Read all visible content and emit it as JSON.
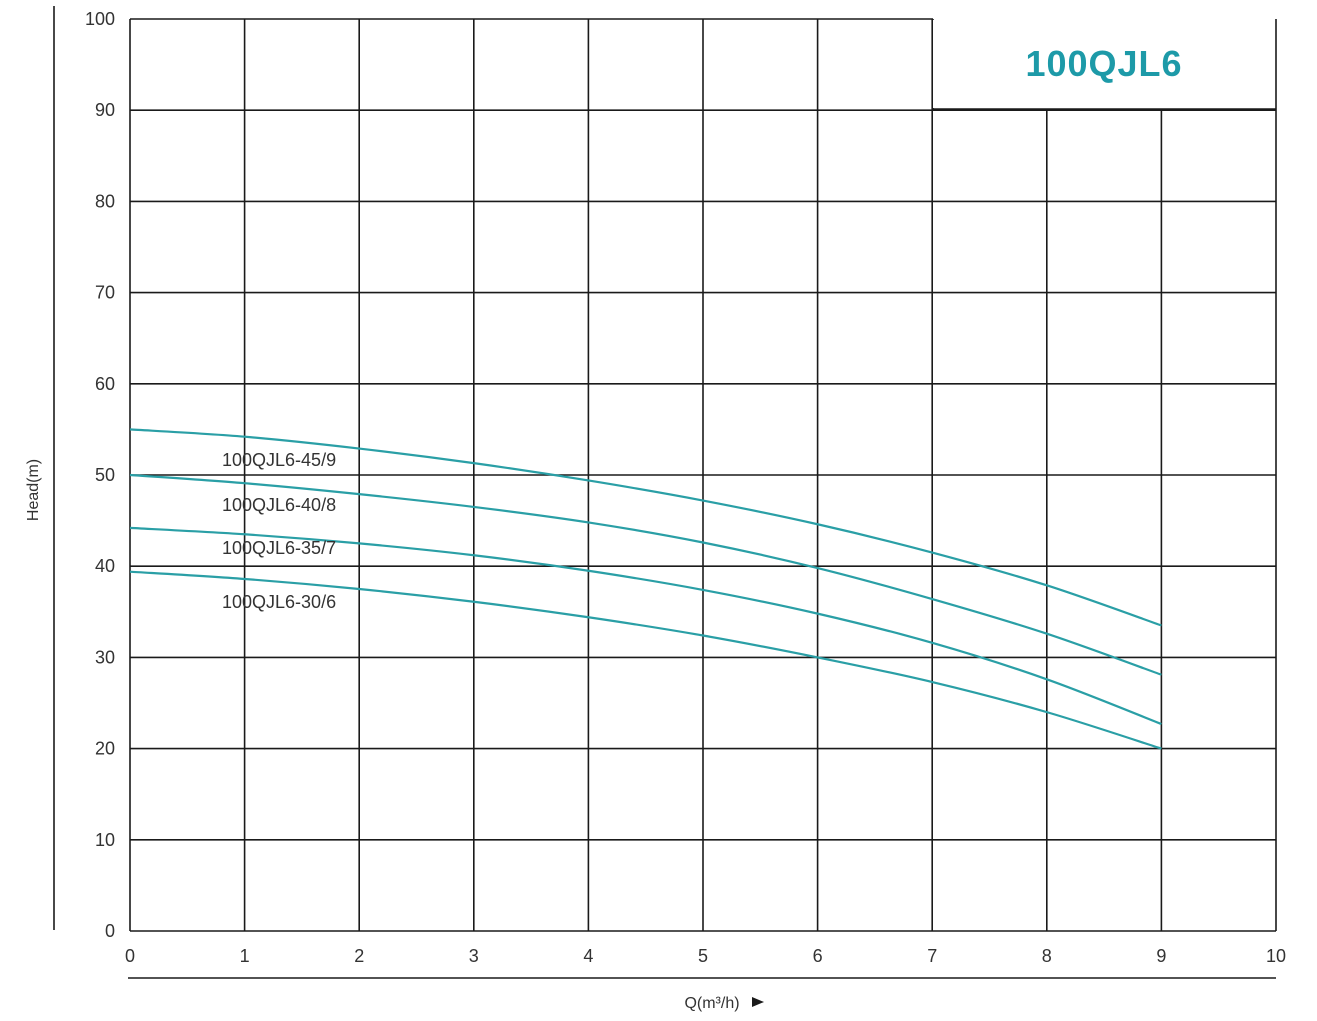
{
  "chart_data": {
    "type": "line",
    "title": "100QJL6",
    "xlabel": "Q(m³/h)",
    "ylabel": "Head(m)",
    "xlim": [
      0,
      10
    ],
    "ylim": [
      0,
      100
    ],
    "xticks": [
      0,
      1,
      2,
      3,
      4,
      5,
      6,
      7,
      8,
      9,
      10
    ],
    "yticks": [
      0,
      10,
      20,
      30,
      40,
      50,
      60,
      70,
      80,
      90,
      100
    ],
    "grid": true,
    "series": [
      {
        "name": "100QJL6-45/9",
        "x": [
          0,
          1,
          2,
          3,
          4,
          5,
          6,
          7,
          8,
          9
        ],
        "y": [
          55,
          54.2,
          52.9,
          51.3,
          49.4,
          47.2,
          44.6,
          41.5,
          37.9,
          33.5
        ]
      },
      {
        "name": "100QJL6-40/8",
        "x": [
          0,
          1,
          2,
          3,
          4,
          5,
          6,
          7,
          8,
          9
        ],
        "y": [
          50,
          49.1,
          47.9,
          46.5,
          44.8,
          42.6,
          39.8,
          36.4,
          32.6,
          28.1
        ]
      },
      {
        "name": "100QJL6-35/7",
        "x": [
          0,
          1,
          2,
          3,
          4,
          5,
          6,
          7,
          8,
          9
        ],
        "y": [
          44.2,
          43.5,
          42.5,
          41.2,
          39.5,
          37.4,
          34.8,
          31.6,
          27.6,
          22.7
        ]
      },
      {
        "name": "100QJL6-30/6",
        "x": [
          0,
          1,
          2,
          3,
          4,
          5,
          6,
          7,
          8,
          9
        ],
        "y": [
          39.4,
          38.6,
          37.5,
          36.1,
          34.4,
          32.4,
          30.0,
          27.3,
          24.0,
          20.0
        ]
      }
    ],
    "colors": {
      "curve": "#2a9fa6",
      "title": "#1d9aa8",
      "grid": "#1a1a1a",
      "text": "#333333"
    }
  }
}
